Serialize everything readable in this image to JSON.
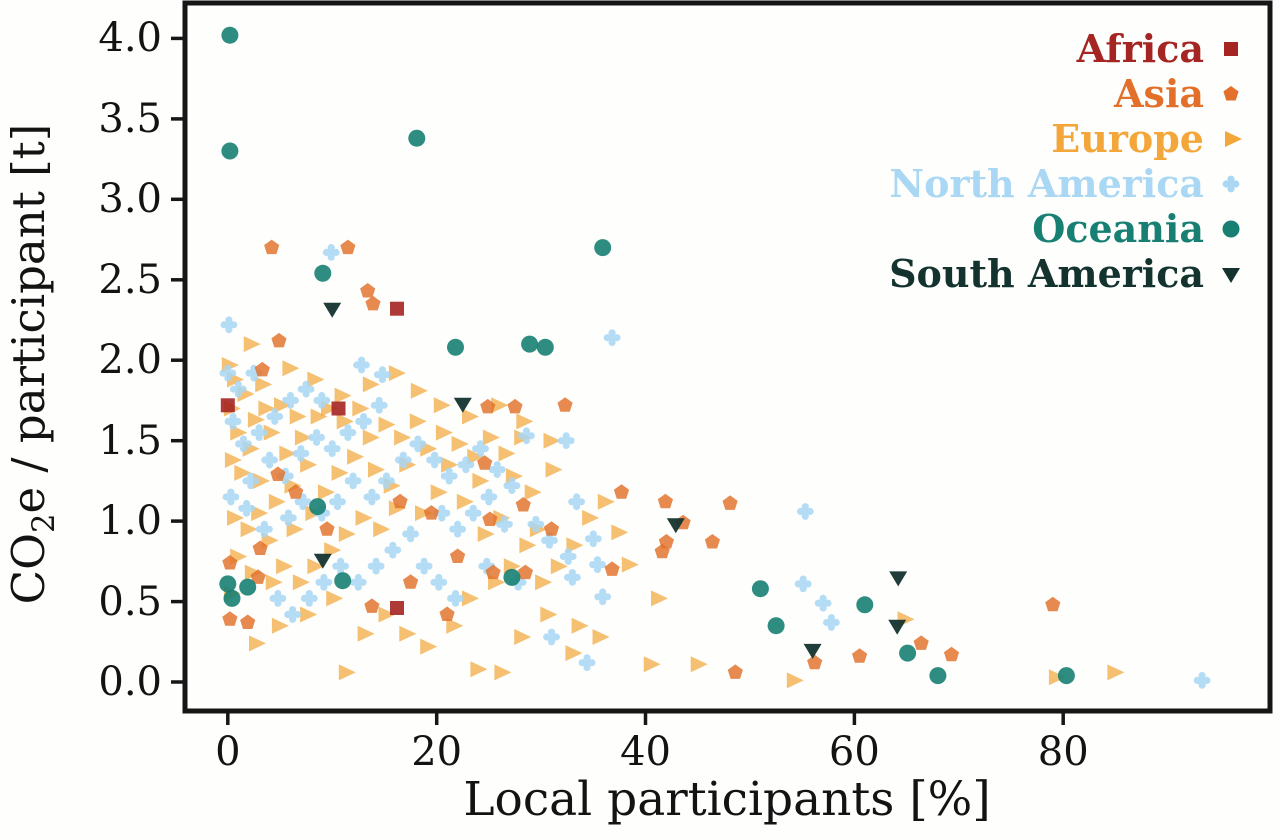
{
  "figure": {
    "background": "#fefefd",
    "axis_color": "#161616"
  },
  "chart_data": {
    "type": "scatter",
    "title": "",
    "xlabel": "Local participants [%]",
    "ylabel": "CO2e / participant [t]",
    "ylabel_parts": {
      "prefix": "CO",
      "sub": "2",
      "suffix": "e / participant [t]"
    },
    "xlim": [
      -4.1,
      99.8
    ],
    "ylim": [
      -0.18,
      4.22
    ],
    "xticks": [
      0,
      20,
      40,
      60,
      80
    ],
    "xtick_labels": [
      "0",
      "20",
      "40",
      "60",
      "80"
    ],
    "yticks": [
      0.0,
      0.5,
      1.0,
      1.5,
      2.0,
      2.5,
      3.0,
      3.5,
      4.0
    ],
    "ytick_labels": [
      "0.0",
      "0.5",
      "1.0",
      "1.5",
      "2.0",
      "2.5",
      "3.0",
      "3.5",
      "4.0"
    ],
    "grid": false,
    "legend_position": "top-right inside",
    "series": [
      {
        "name": "Africa",
        "shape": "square",
        "color": "#A42521",
        "opacity": 0.9,
        "points": [
          [
            0,
            1.72
          ],
          [
            10.6,
            1.7
          ],
          [
            16.2,
            2.32
          ],
          [
            16.2,
            0.46
          ]
        ]
      },
      {
        "name": "Asia",
        "shape": "pentagon",
        "color": "#E2702A",
        "opacity": 0.82,
        "points": [
          [
            4.2,
            2.7
          ],
          [
            11.5,
            2.7
          ],
          [
            13.4,
            2.43
          ],
          [
            13.9,
            2.35
          ],
          [
            4.9,
            2.12
          ],
          [
            3.3,
            1.94
          ],
          [
            24.9,
            1.71
          ],
          [
            27.5,
            1.71
          ],
          [
            32.3,
            1.72
          ],
          [
            4.8,
            1.29
          ],
          [
            24.6,
            1.36
          ],
          [
            16.5,
            1.12
          ],
          [
            25.1,
            1.01
          ],
          [
            28.3,
            1.1
          ],
          [
            37.7,
            1.18
          ],
          [
            41.9,
            1.12
          ],
          [
            48.1,
            1.11
          ],
          [
            43.6,
            0.99
          ],
          [
            42.0,
            0.87
          ],
          [
            41.6,
            0.81
          ],
          [
            46.4,
            0.87
          ],
          [
            36.8,
            0.7
          ],
          [
            13.8,
            0.47
          ],
          [
            0.2,
            0.39
          ],
          [
            1.9,
            0.37
          ],
          [
            3.1,
            0.83
          ],
          [
            0.2,
            0.74
          ],
          [
            2.9,
            0.65
          ],
          [
            56.2,
            0.12
          ],
          [
            60.5,
            0.16
          ],
          [
            66.4,
            0.24
          ],
          [
            69.3,
            0.17
          ],
          [
            79.0,
            0.48
          ],
          [
            48.6,
            0.06
          ],
          [
            6.5,
            1.18
          ],
          [
            9.5,
            0.95
          ],
          [
            19.5,
            1.05
          ],
          [
            22.0,
            0.78
          ],
          [
            28.5,
            0.68
          ],
          [
            31.0,
            0.95
          ],
          [
            17.5,
            0.62
          ],
          [
            21.0,
            0.42
          ],
          [
            25.4,
            0.68
          ]
        ]
      },
      {
        "name": "Europe",
        "shape": "triangle-right",
        "color": "#F3A73B",
        "opacity": 0.72,
        "points": [
          [
            0,
            1.97
          ],
          [
            0.5,
            1.88
          ],
          [
            1.5,
            1.79
          ],
          [
            0.2,
            1.7
          ],
          [
            2.5,
            1.63
          ],
          [
            0.8,
            1.55
          ],
          [
            3.5,
            1.7
          ],
          [
            5,
            1.72
          ],
          [
            6.5,
            1.65
          ],
          [
            4,
            1.55
          ],
          [
            2,
            1.45
          ],
          [
            0.3,
            1.38
          ],
          [
            1.2,
            1.3
          ],
          [
            3,
            1.25
          ],
          [
            5.5,
            1.42
          ],
          [
            7,
            1.52
          ],
          [
            8.5,
            1.65
          ],
          [
            9.5,
            1.7
          ],
          [
            11,
            1.62
          ],
          [
            12.5,
            1.7
          ],
          [
            7.5,
            1.35
          ],
          [
            6,
            1.22
          ],
          [
            4.5,
            1.12
          ],
          [
            2.8,
            1.05
          ],
          [
            0.5,
            1.02
          ],
          [
            1.8,
            0.95
          ],
          [
            3.8,
            0.88
          ],
          [
            6.2,
            0.95
          ],
          [
            8,
            1.05
          ],
          [
            9.2,
            1.18
          ],
          [
            10.5,
            1.3
          ],
          [
            12,
            1.4
          ],
          [
            13.5,
            1.52
          ],
          [
            15,
            1.6
          ],
          [
            16.5,
            1.52
          ],
          [
            18,
            1.62
          ],
          [
            14,
            1.32
          ],
          [
            15.5,
            1.22
          ],
          [
            17,
            1.35
          ],
          [
            19,
            1.45
          ],
          [
            20.5,
            1.55
          ],
          [
            22,
            1.48
          ],
          [
            21,
            1.35
          ],
          [
            23.5,
            1.4
          ],
          [
            25,
            1.52
          ],
          [
            26.5,
            1.42
          ],
          [
            28,
            1.52
          ],
          [
            24,
            1.25
          ],
          [
            22.5,
            1.12
          ],
          [
            20,
            1.18
          ],
          [
            18.5,
            1.05
          ],
          [
            16,
            1.08
          ],
          [
            14.5,
            0.95
          ],
          [
            12.8,
            1.02
          ],
          [
            11.2,
            0.92
          ],
          [
            9.8,
            0.82
          ],
          [
            8.2,
            0.72
          ],
          [
            6.8,
            0.62
          ],
          [
            5.2,
            0.72
          ],
          [
            4.2,
            0.62
          ],
          [
            2.2,
            0.68
          ],
          [
            0.8,
            0.78
          ],
          [
            0.2,
            0.55
          ],
          [
            2.6,
            0.24
          ],
          [
            4.8,
            0.35
          ],
          [
            7.5,
            0.42
          ],
          [
            10,
            0.52
          ],
          [
            11.2,
            0.06
          ],
          [
            13,
            0.3
          ],
          [
            15,
            0.42
          ],
          [
            17,
            0.3
          ],
          [
            19,
            0.22
          ],
          [
            21.5,
            0.35
          ],
          [
            23,
            0.52
          ],
          [
            25.5,
            0.62
          ],
          [
            27,
            0.72
          ],
          [
            28.5,
            0.85
          ],
          [
            29.5,
            0.95
          ],
          [
            26,
            1.02
          ],
          [
            24.5,
            0.92
          ],
          [
            30,
            0.62
          ],
          [
            31.5,
            0.72
          ],
          [
            33,
            0.85
          ],
          [
            34.5,
            1.02
          ],
          [
            36,
            1.12
          ],
          [
            30.5,
            0.42
          ],
          [
            28,
            0.28
          ],
          [
            26.1,
            0.06
          ],
          [
            23.8,
            0.08
          ],
          [
            33.5,
            0.35
          ],
          [
            35.5,
            0.28
          ],
          [
            16,
            1.92
          ],
          [
            13.5,
            1.85
          ],
          [
            10.8,
            1.78
          ],
          [
            8.2,
            1.88
          ],
          [
            5.8,
            1.95
          ],
          [
            3.2,
            1.85
          ],
          [
            20.3,
            1.72
          ],
          [
            23,
            1.65
          ],
          [
            25.8,
            1.72
          ],
          [
            28.2,
            1.62
          ],
          [
            31,
            1.32
          ],
          [
            29,
            1.18
          ],
          [
            27.2,
            1.28
          ],
          [
            2.1,
            2.1
          ],
          [
            18.1,
            1.81
          ],
          [
            30.8,
            1.5
          ],
          [
            32.9,
            0.18
          ],
          [
            37.3,
            0.93
          ],
          [
            38.3,
            0.73
          ],
          [
            40.4,
            0.11
          ],
          [
            41.1,
            0.52
          ],
          [
            44.9,
            0.11
          ],
          [
            54.1,
            0.01
          ],
          [
            64.7,
            0.39
          ],
          [
            79.2,
            0.03
          ],
          [
            84.8,
            0.06
          ]
        ]
      },
      {
        "name": "North America",
        "shape": "club",
        "color": "#A9D7F4",
        "opacity": 0.85,
        "points": [
          [
            0.1,
            2.22
          ],
          [
            9.9,
            2.67
          ],
          [
            12.8,
            1.97
          ],
          [
            14.8,
            1.91
          ],
          [
            36.8,
            2.14
          ],
          [
            28.6,
            1.53
          ],
          [
            32.4,
            1.5
          ],
          [
            33.4,
            1.12
          ],
          [
            55.3,
            1.06
          ],
          [
            55.1,
            0.61
          ],
          [
            57.0,
            0.49
          ],
          [
            57.8,
            0.37
          ],
          [
            35.0,
            0.89
          ],
          [
            35.4,
            0.73
          ],
          [
            32.6,
            0.78
          ],
          [
            35.9,
            0.53
          ],
          [
            34.4,
            0.12
          ],
          [
            93.3,
            0.01
          ],
          [
            29.5,
            0.98
          ],
          [
            0,
            1.92
          ],
          [
            1,
            1.82
          ],
          [
            2.5,
            1.92
          ],
          [
            0.5,
            1.62
          ],
          [
            1.5,
            1.48
          ],
          [
            3,
            1.55
          ],
          [
            4.5,
            1.65
          ],
          [
            6,
            1.75
          ],
          [
            7.5,
            1.82
          ],
          [
            9,
            1.75
          ],
          [
            4,
            1.38
          ],
          [
            5.5,
            1.28
          ],
          [
            7,
            1.42
          ],
          [
            8.5,
            1.52
          ],
          [
            10,
            1.45
          ],
          [
            11.5,
            1.55
          ],
          [
            13,
            1.62
          ],
          [
            14.5,
            1.72
          ],
          [
            12,
            1.25
          ],
          [
            10.5,
            1.12
          ],
          [
            9,
            1.05
          ],
          [
            7.2,
            1.12
          ],
          [
            5.8,
            1.02
          ],
          [
            3.5,
            0.95
          ],
          [
            1.8,
            1.08
          ],
          [
            0.3,
            1.15
          ],
          [
            2.2,
            1.25
          ],
          [
            13.8,
            1.15
          ],
          [
            15.2,
            1.25
          ],
          [
            16.8,
            1.38
          ],
          [
            18.2,
            1.48
          ],
          [
            19.8,
            1.38
          ],
          [
            21.2,
            1.28
          ],
          [
            22.8,
            1.35
          ],
          [
            24.2,
            1.45
          ],
          [
            25.8,
            1.32
          ],
          [
            27.2,
            1.22
          ],
          [
            20.5,
            1.05
          ],
          [
            22,
            0.95
          ],
          [
            23.5,
            1.05
          ],
          [
            25,
            1.15
          ],
          [
            26.5,
            0.98
          ],
          [
            17.5,
            0.92
          ],
          [
            15.8,
            0.82
          ],
          [
            14.2,
            0.72
          ],
          [
            12.5,
            0.62
          ],
          [
            10.8,
            0.72
          ],
          [
            9.2,
            0.62
          ],
          [
            7.8,
            0.52
          ],
          [
            6.2,
            0.42
          ],
          [
            4.8,
            0.52
          ],
          [
            18.8,
            0.72
          ],
          [
            20.2,
            0.62
          ],
          [
            21.8,
            0.52
          ],
          [
            24.8,
            0.72
          ],
          [
            27.8,
            0.62
          ],
          [
            30.8,
            0.88
          ],
          [
            33.0,
            0.65
          ],
          [
            31.0,
            0.28
          ]
        ]
      },
      {
        "name": "Oceania",
        "shape": "circle",
        "color": "#178073",
        "opacity": 0.9,
        "points": [
          [
            0.2,
            4.02
          ],
          [
            0.2,
            3.3
          ],
          [
            18.1,
            3.38
          ],
          [
            35.9,
            2.7
          ],
          [
            9.1,
            2.54
          ],
          [
            21.8,
            2.08
          ],
          [
            28.9,
            2.1
          ],
          [
            30.4,
            2.08
          ],
          [
            8.6,
            1.09
          ],
          [
            11.0,
            0.63
          ],
          [
            0,
            0.61
          ],
          [
            1.9,
            0.59
          ],
          [
            0.4,
            0.52
          ],
          [
            27.2,
            0.65
          ],
          [
            51.0,
            0.58
          ],
          [
            61.0,
            0.48
          ],
          [
            52.5,
            0.35
          ],
          [
            65.1,
            0.18
          ],
          [
            68.0,
            0.04
          ],
          [
            80.3,
            0.04
          ]
        ]
      },
      {
        "name": "South America",
        "shape": "triangle-down",
        "color": "#14332F",
        "opacity": 0.95,
        "points": [
          [
            10.0,
            2.32
          ],
          [
            22.5,
            1.73
          ],
          [
            9.1,
            0.76
          ],
          [
            42.9,
            0.98
          ],
          [
            56.0,
            0.2
          ],
          [
            64.1,
            0.35
          ],
          [
            64.2,
            0.65
          ]
        ]
      }
    ]
  }
}
